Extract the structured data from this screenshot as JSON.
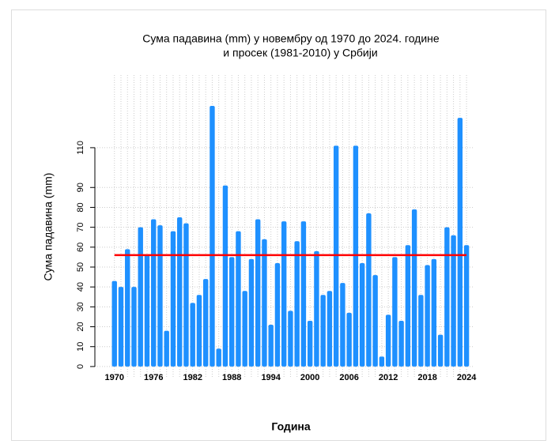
{
  "chart_data": {
    "type": "bar",
    "title": "Сума падавина (mm)  у новембру од 1970 до 2024. године",
    "subtitle": "и просек (1981-2010) у Србији",
    "xlabel": "Година",
    "ylabel": "Сума падавина (mm)",
    "x": [
      1970,
      1971,
      1972,
      1973,
      1974,
      1975,
      1976,
      1977,
      1978,
      1979,
      1980,
      1981,
      1982,
      1983,
      1984,
      1985,
      1986,
      1987,
      1988,
      1989,
      1990,
      1991,
      1992,
      1993,
      1994,
      1995,
      1996,
      1997,
      1998,
      1999,
      2000,
      2001,
      2002,
      2003,
      2004,
      2005,
      2006,
      2007,
      2008,
      2009,
      2010,
      2011,
      2012,
      2013,
      2014,
      2015,
      2016,
      2017,
      2018,
      2019,
      2020,
      2021,
      2022,
      2023,
      2024
    ],
    "values": [
      43,
      40,
      59,
      40,
      70,
      56,
      74,
      71,
      18,
      68,
      75,
      72,
      32,
      36,
      44,
      131,
      9,
      91,
      55,
      68,
      38,
      54,
      74,
      64,
      21,
      52,
      73,
      28,
      63,
      73,
      23,
      58,
      36,
      38,
      111,
      42,
      27,
      111,
      52,
      77,
      46,
      5,
      26,
      55,
      23,
      61,
      79,
      36,
      51,
      54,
      16,
      70,
      66,
      125,
      61
    ],
    "color": "#1e90ff",
    "average": 56,
    "average_color": "#ff0000",
    "xlim": [
      1967,
      2025.2
    ],
    "ylim": [
      -5.6,
      146.5
    ],
    "xticks": [
      1970,
      1976,
      1982,
      1988,
      1994,
      2000,
      2006,
      2012,
      2018,
      2024
    ],
    "yticks": [
      0,
      10,
      20,
      30,
      40,
      50,
      60,
      70,
      80,
      90,
      110
    ],
    "grid": true
  }
}
